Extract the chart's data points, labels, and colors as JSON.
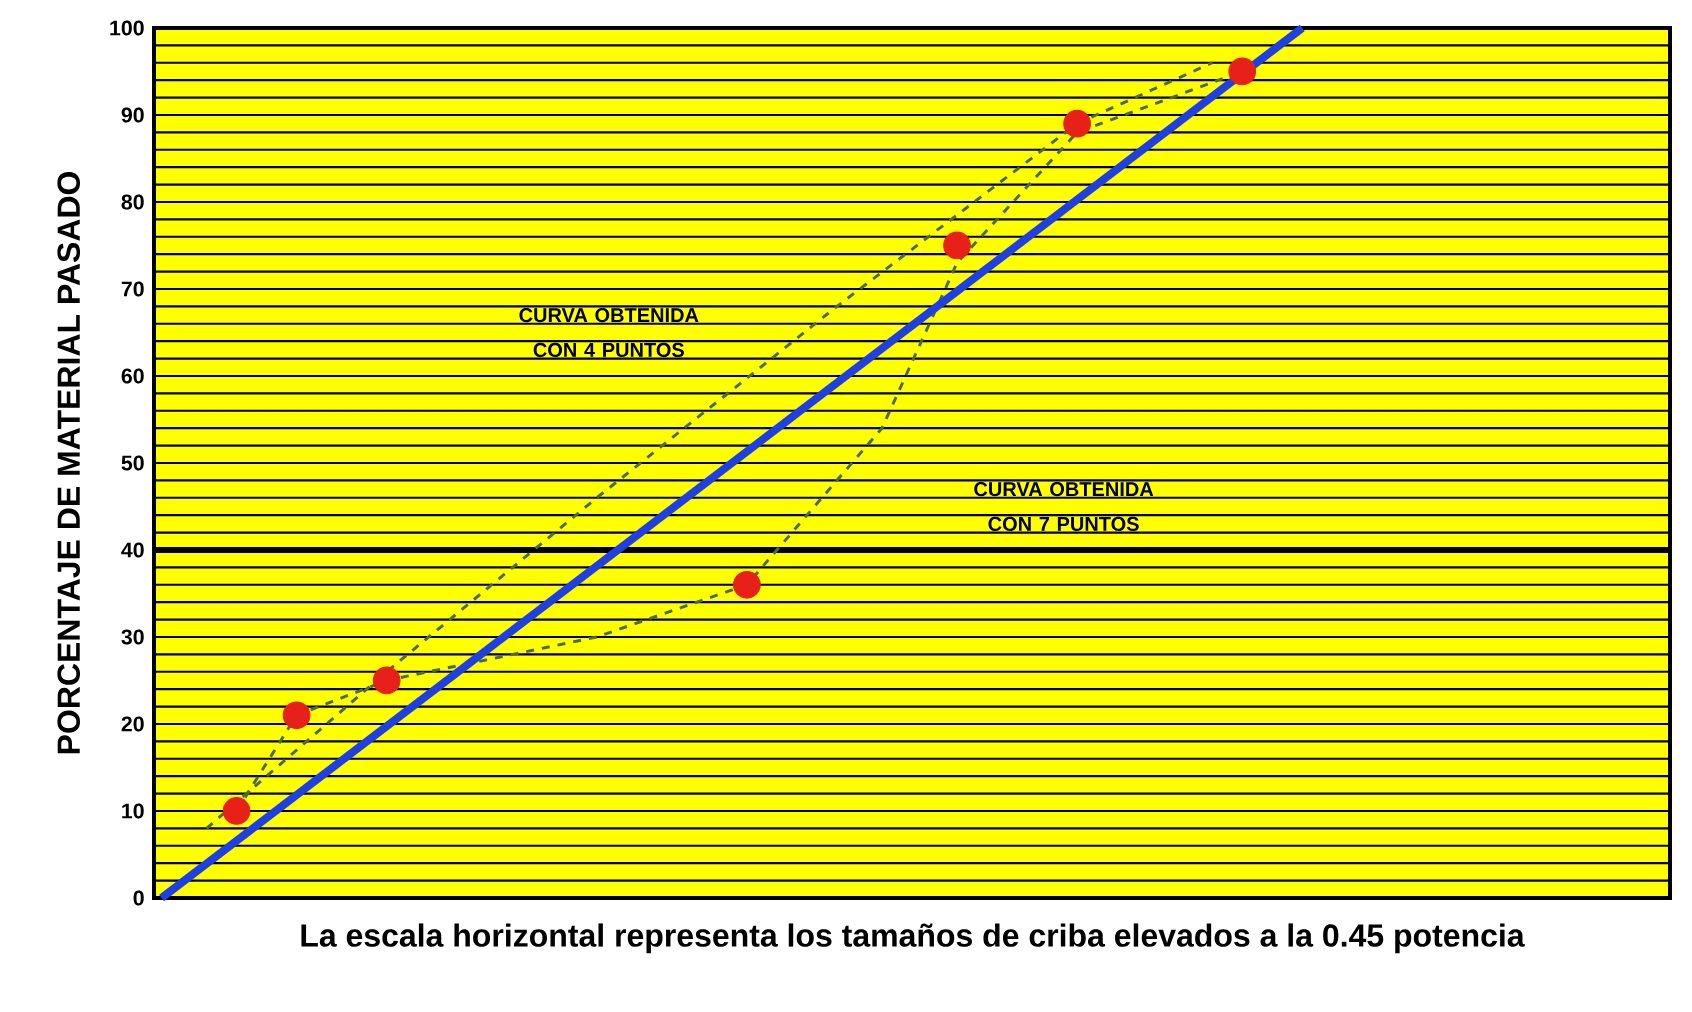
{
  "chart_data": {
    "type": "line",
    "xlabel": "La escala horizontal representa los tamaños de criba elevados a la 0.45 potencia",
    "ylabel": "PORCENTAJE DE MATERIAL PASADO",
    "categories": [
      null,
      null,
      null,
      null,
      null,
      null,
      null,
      null,
      null,
      null,
      null,
      null,
      null,
      null,
      null,
      null,
      null,
      null,
      null,
      null,
      null,
      null,
      null,
      null,
      null,
      null,
      null,
      null,
      null,
      null,
      null,
      null,
      null,
      null,
      null,
      null,
      null,
      null,
      null,
      null,
      null,
      null,
      null,
      null,
      null,
      null,
      null,
      null,
      null,
      null,
      null,
      null,
      null,
      null,
      null,
      null,
      null,
      null,
      null,
      null,
      null,
      null,
      null,
      null,
      null,
      null,
      null,
      null,
      null,
      null,
      null,
      null,
      null,
      null,
      null,
      null,
      null,
      null,
      null,
      null,
      null,
      null,
      null,
      null,
      null,
      null,
      null,
      null,
      null,
      null,
      null,
      null,
      null,
      null,
      null,
      null,
      null,
      null,
      null,
      null,
      null
    ],
    "ylim": [
      0,
      100
    ],
    "yticks": [
      0,
      {
        "value": 2,
        "label": null
      },
      {
        "value": 4,
        "label": null
      },
      {
        "value": 6,
        "label": null
      },
      {
        "value": 8,
        "label": null
      },
      10,
      {
        "value": 12,
        "label": null
      },
      {
        "value": 14,
        "label": null
      },
      {
        "value": 16,
        "label": null
      },
      {
        "value": 18,
        "label": null
      },
      20,
      {
        "value": 22,
        "label": null
      },
      {
        "value": 24,
        "label": null
      },
      {
        "value": 26,
        "label": null
      },
      {
        "value": 28,
        "label": null
      },
      30,
      {
        "value": 32,
        "label": null
      },
      {
        "value": 34,
        "label": null
      },
      {
        "value": 36,
        "label": null
      },
      {
        "value": 38,
        "label": null
      },
      40,
      {
        "value": 42,
        "label": null
      },
      {
        "value": 44,
        "label": null
      },
      {
        "value": 46,
        "label": null
      },
      {
        "value": 48,
        "label": null
      },
      50,
      {
        "value": 52,
        "label": null
      },
      {
        "value": 54,
        "label": null
      },
      {
        "value": 56,
        "label": null
      },
      {
        "value": 58,
        "label": null
      },
      60,
      {
        "value": 62,
        "label": null
      },
      {
        "value": 64,
        "label": null
      },
      {
        "value": 66,
        "label": null
      },
      {
        "value": 68,
        "label": null
      },
      70,
      {
        "value": 72,
        "label": null
      },
      {
        "value": 74,
        "label": null
      },
      {
        "value": 76,
        "label": null
      },
      {
        "value": 78,
        "label": null
      },
      80,
      {
        "value": 82,
        "label": null
      },
      {
        "value": 84,
        "label": null
      },
      {
        "value": 86,
        "label": null
      },
      {
        "value": 88,
        "label": null
      },
      90,
      {
        "value": 92,
        "label": null
      },
      {
        "value": 94,
        "label": null
      },
      {
        "value": 96,
        "label": null
      },
      {
        "value": 98,
        "label": null
      },
      100
    ],
    "tick_labels": "y",
    "grid": "y",
    "ref_lines": [
      {
        "axis": "y",
        "value": 40,
        "color": "#000000"
      }
    ],
    "series": [
      {
        "line_style": "dashed",
        "color": "#4a6a50",
        "values": [
          null,
          null,
          null,
          8,
          null,
          null,
          null,
          null,
          null,
          null,
          null,
          null,
          null,
          null,
          null,
          26,
          null,
          null,
          null,
          null,
          null,
          null,
          null,
          null,
          null,
          null,
          null,
          null,
          null,
          46,
          null,
          null,
          null,
          null,
          null,
          null,
          null,
          null,
          null,
          null,
          null,
          null,
          null,
          null,
          null,
          68,
          null,
          null,
          null,
          null,
          null,
          null,
          null,
          null,
          null,
          null,
          null,
          null,
          null,
          null,
          null,
          89,
          null,
          null,
          null,
          null,
          null,
          null,
          null,
          null,
          96,
          null,
          null,
          null,
          null,
          null,
          null,
          null,
          null,
          null,
          null,
          null,
          null,
          null,
          null,
          null,
          null,
          null,
          null,
          null,
          null,
          null,
          null,
          null,
          null,
          null,
          null,
          null,
          null,
          null,
          null
        ]
      },
      {
        "line_style": "dashed",
        "color": "#4a6a50",
        "values": [
          null,
          null,
          null,
          null,
          null,
          10,
          null,
          null,
          null,
          21,
          null,
          null,
          null,
          null,
          null,
          25,
          null,
          null,
          null,
          null,
          null,
          null,
          null,
          null,
          null,
          null,
          null,
          null,
          null,
          30,
          null,
          null,
          null,
          null,
          null,
          null,
          null,
          null,
          null,
          36,
          null,
          null,
          null,
          null,
          null,
          null,
          null,
          null,
          54,
          null,
          null,
          null,
          null,
          73,
          null,
          null,
          null,
          null,
          null,
          null,
          null,
          88,
          null,
          null,
          null,
          null,
          null,
          null,
          null,
          null,
          null,
          null,
          95,
          null,
          null,
          null,
          null,
          null,
          null,
          null,
          null,
          null,
          null,
          null,
          null,
          null,
          null,
          null,
          null,
          null,
          null,
          null,
          null,
          null,
          null,
          null,
          null,
          null,
          null,
          null,
          null
        ]
      },
      {
        "line_style": "solid",
        "color": "#1f3fe6",
        "values": [
          0,
          null,
          null,
          null,
          null,
          null,
          null,
          null,
          null,
          null,
          null,
          null,
          null,
          null,
          null,
          null,
          null,
          null,
          null,
          null,
          null,
          null,
          null,
          null,
          null,
          null,
          null,
          null,
          null,
          null,
          null,
          null,
          null,
          null,
          null,
          null,
          null,
          null,
          null,
          null,
          null,
          null,
          null,
          null,
          null,
          null,
          null,
          null,
          null,
          null,
          null,
          null,
          null,
          null,
          null,
          null,
          null,
          null,
          null,
          null,
          null,
          null,
          null,
          null,
          null,
          null,
          null,
          null,
          null,
          null,
          null,
          null,
          null,
          null,
          null,
          null,
          100,
          null,
          null,
          null,
          null,
          null,
          null,
          null,
          null,
          null,
          null,
          null,
          null,
          null,
          null,
          null,
          null,
          null,
          null,
          null,
          null,
          null,
          null,
          null,
          null
        ]
      },
      {
        "type": "scatter",
        "marker": "circle",
        "color": "#e8201a",
        "values": [
          null,
          null,
          null,
          null,
          null,
          10,
          null,
          null,
          null,
          21,
          null,
          null,
          null,
          null,
          null,
          25,
          null,
          null,
          null,
          null,
          null,
          null,
          null,
          null,
          null,
          null,
          null,
          null,
          null,
          null,
          null,
          null,
          null,
          null,
          null,
          null,
          null,
          null,
          null,
          36,
          null,
          null,
          null,
          null,
          null,
          null,
          null,
          null,
          null,
          null,
          null,
          null,
          null,
          75,
          null,
          null,
          null,
          null,
          null,
          null,
          null,
          89,
          null,
          null,
          null,
          null,
          null,
          null,
          null,
          null,
          null,
          null,
          95,
          null,
          null,
          null,
          null,
          null,
          null,
          null,
          null,
          null,
          null,
          null,
          null,
          null,
          null,
          null,
          null,
          null,
          null,
          null,
          null,
          null,
          null,
          null,
          null,
          null,
          null,
          null,
          null
        ]
      }
    ],
    "annotations": [
      "CURVA OBTENIDA CON 4 PUNTOS",
      "CURVA OBTENIDA CON 7 PUNTOS"
    ]
  }
}
